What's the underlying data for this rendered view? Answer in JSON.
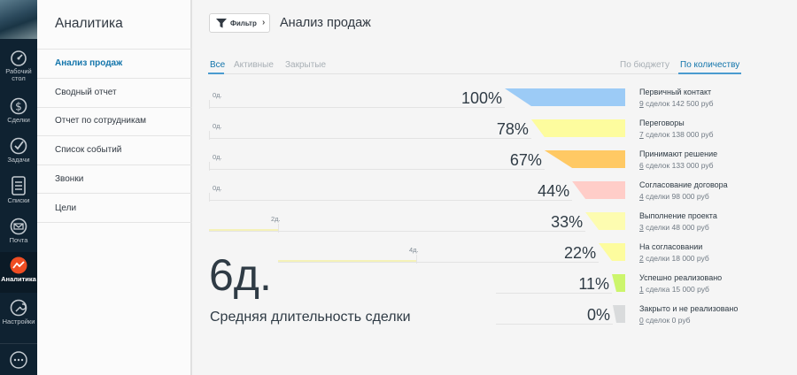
{
  "sidebar": {
    "items": [
      {
        "icon": "dashboard-icon",
        "label": "Рабочий стол"
      },
      {
        "icon": "dollar-icon",
        "label": "Сделки"
      },
      {
        "icon": "check-icon",
        "label": "Задачи"
      },
      {
        "icon": "list-icon",
        "label": "Списки"
      },
      {
        "icon": "mail-icon",
        "label": "Почта"
      },
      {
        "icon": "analytics-icon",
        "label": "Аналитика",
        "active": true
      },
      {
        "icon": "wrench-icon",
        "label": "Настройки"
      }
    ],
    "chat_icon": "chat-icon"
  },
  "menu": {
    "title": "Аналитика",
    "items": [
      {
        "label": "Анализ продаж",
        "active": true
      },
      {
        "label": "Сводный отчет"
      },
      {
        "label": "Отчет по сотрудникам"
      },
      {
        "label": "Список событий"
      },
      {
        "label": "Звонки"
      },
      {
        "label": "Цели"
      }
    ]
  },
  "toolbar": {
    "filter_label": "Фильтр",
    "filter_icon": "funnel-filter-icon",
    "chevron": "›",
    "page_title": "Анализ продаж"
  },
  "tabs": {
    "left": [
      "Все",
      "Активные",
      "Закрытые"
    ],
    "right": [
      "По бюджету",
      "По количеству"
    ],
    "active_left": 0,
    "active_right": 1,
    "accent": "#1375ab"
  },
  "funnel": {
    "stages": [
      {
        "name": "Первичный контакт",
        "count": "9",
        "rest": " сделок 142 500 руб",
        "percent_label": "100%",
        "percent": 100,
        "duration": "0д.",
        "duration_days": 0,
        "color": "#9ccbf6"
      },
      {
        "name": "Переговоры",
        "count": "7",
        "rest": " сделок 138 000 руб",
        "percent_label": "78%",
        "percent": 78,
        "duration": "0д.",
        "duration_days": 0,
        "color": "#fdfc9e"
      },
      {
        "name": "Принимают решение",
        "count": "6",
        "rest": " сделок 133 000 руб",
        "percent_label": "67%",
        "percent": 67,
        "duration": "0д.",
        "duration_days": 0,
        "color": "#ffc964"
      },
      {
        "name": "Согласование договора",
        "count": "4",
        "rest": " сделки 98 000 руб",
        "percent_label": "44%",
        "percent": 44,
        "duration": "0д.",
        "duration_days": 0,
        "color": "#ffcdc8"
      },
      {
        "name": "Выполнение проекта",
        "count": "3",
        "rest": " сделки 48 000 руб",
        "percent_label": "33%",
        "percent": 33,
        "duration": "2д.",
        "duration_days": 2,
        "color": "#fdfcb0"
      },
      {
        "name": "На согласовании",
        "count": "2",
        "rest": " сделки 18 000 руб",
        "percent_label": "22%",
        "percent": 22,
        "duration": "4д.",
        "duration_days": 4,
        "color": "#fdfc9e"
      },
      {
        "name": "Успешно реализовано",
        "count": "1",
        "rest": " сделка 15 000 руб",
        "percent_label": "11%",
        "percent": 11,
        "color": "#ccf56c"
      },
      {
        "name": "Закрыто и не реализовано",
        "count": "0",
        "rest": " сделок 0 руб",
        "percent_label": "0%",
        "percent": 0,
        "color": "#d9dbdc"
      }
    ]
  },
  "summary": {
    "value": "6д.",
    "caption": "Средняя длительность сделки"
  }
}
